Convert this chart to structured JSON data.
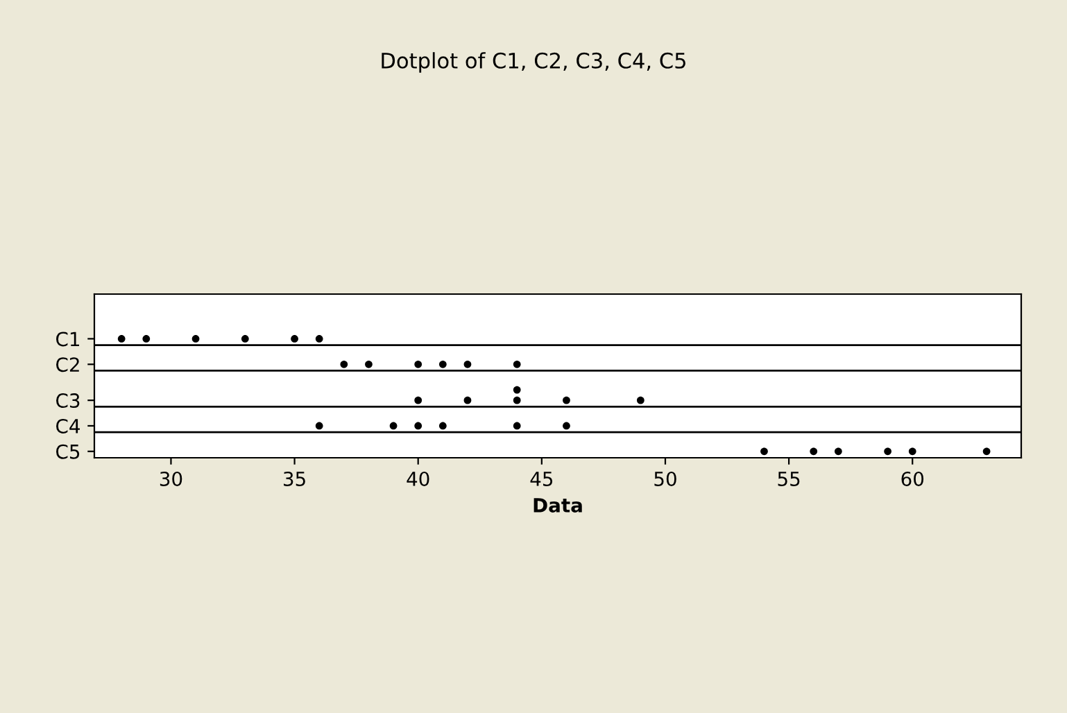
{
  "chart_data": {
    "type": "scatter",
    "orientation": "horizontal",
    "title": "Dotplot of C1, C2, C3, C4, C5",
    "xlabel": "Data",
    "categories": [
      "C1",
      "C2",
      "C3",
      "C4",
      "C5"
    ],
    "series": [
      {
        "color": "#000000",
        "values": [
          28,
          37,
          40,
          36,
          54
        ]
      },
      {
        "color": "#000000",
        "values": [
          29,
          38,
          42,
          39,
          56
        ]
      },
      {
        "color": "#000000",
        "values": [
          31,
          40,
          44,
          40,
          57
        ]
      },
      {
        "color": "#000000",
        "values": [
          33,
          41,
          44,
          41,
          59
        ]
      },
      {
        "color": "#000000",
        "values": [
          35,
          42,
          46,
          44,
          60
        ]
      },
      {
        "color": "#000000",
        "values": [
          36,
          44,
          49,
          46,
          63
        ]
      }
    ],
    "xlim": [
      26.9,
      64.4
    ],
    "xticks": [
      30,
      35,
      40,
      45,
      50,
      55,
      60
    ],
    "marker": "circle",
    "grid": false,
    "legend": false
  }
}
